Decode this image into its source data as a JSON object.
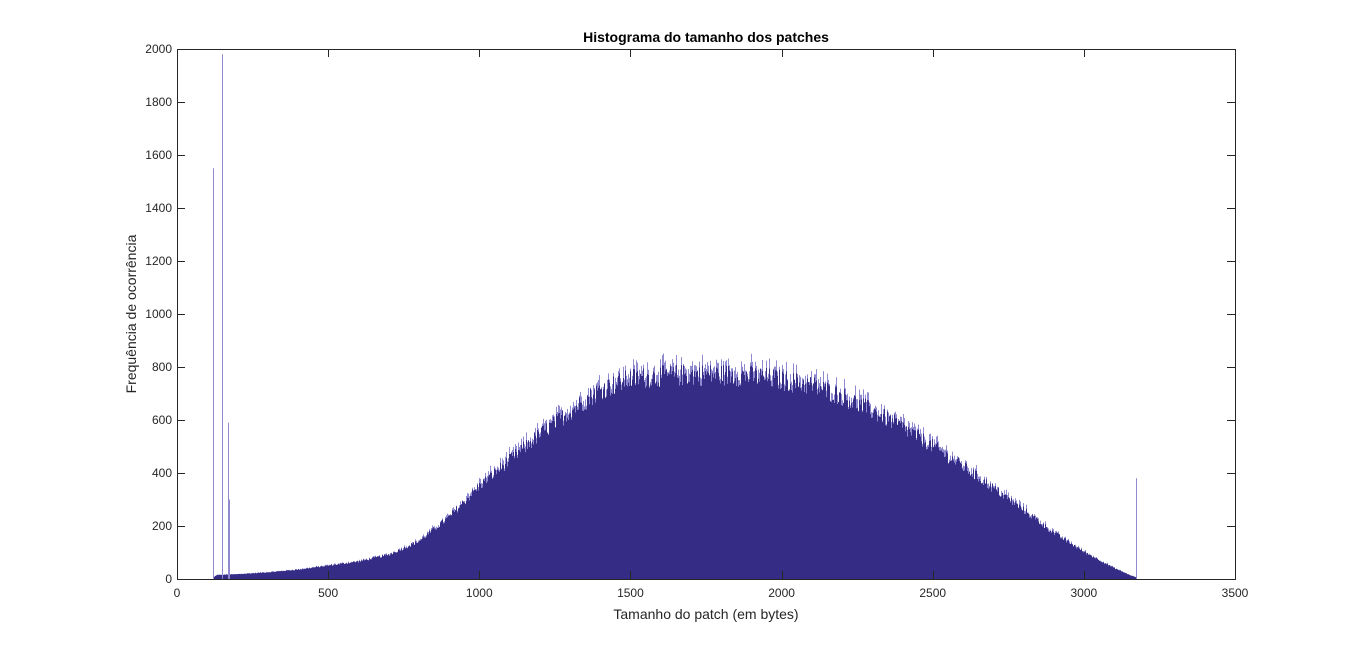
{
  "chart_data": {
    "type": "bar",
    "title": "Histograma do tamanho dos patches",
    "xlabel": "Tamanho do patch (em bytes)",
    "ylabel": "Frequência de ocorrência",
    "xlim": [
      0,
      3500
    ],
    "ylim": [
      0,
      2000
    ],
    "xticks": [
      "0",
      "500",
      "1000",
      "1500",
      "2000",
      "2500",
      "3000",
      "3500"
    ],
    "yticks": [
      "0",
      "200",
      "400",
      "600",
      "800",
      "1000",
      "1200",
      "1400",
      "1600",
      "1800",
      "2000"
    ],
    "grid": false,
    "bar_color": "#352c85",
    "spike_color": "#8f8ad0",
    "bin_width": 1,
    "data_range": [
      118,
      3175
    ],
    "envelope": {
      "x": [
        118,
        130,
        200,
        300,
        400,
        500,
        600,
        700,
        800,
        900,
        1000,
        1100,
        1200,
        1300,
        1400,
        1500,
        1600,
        1700,
        1800,
        1900,
        2000,
        2100,
        2200,
        2300,
        2400,
        2500,
        2600,
        2700,
        2800,
        2900,
        3000,
        3100,
        3150,
        3175
      ],
      "y": [
        5,
        15,
        18,
        25,
        35,
        50,
        65,
        90,
        140,
        230,
        345,
        440,
        535,
        620,
        700,
        740,
        750,
        755,
        755,
        750,
        735,
        715,
        675,
        620,
        560,
        490,
        415,
        335,
        255,
        170,
        100,
        40,
        15,
        5
      ]
    },
    "spikes": [
      {
        "x": 119,
        "value": 1550
      },
      {
        "x": 148,
        "value": 1980
      },
      {
        "x": 149,
        "value": 1390
      },
      {
        "x": 168,
        "value": 590
      },
      {
        "x": 171,
        "value": 300
      },
      {
        "x": 3172,
        "value": 380
      }
    ]
  }
}
